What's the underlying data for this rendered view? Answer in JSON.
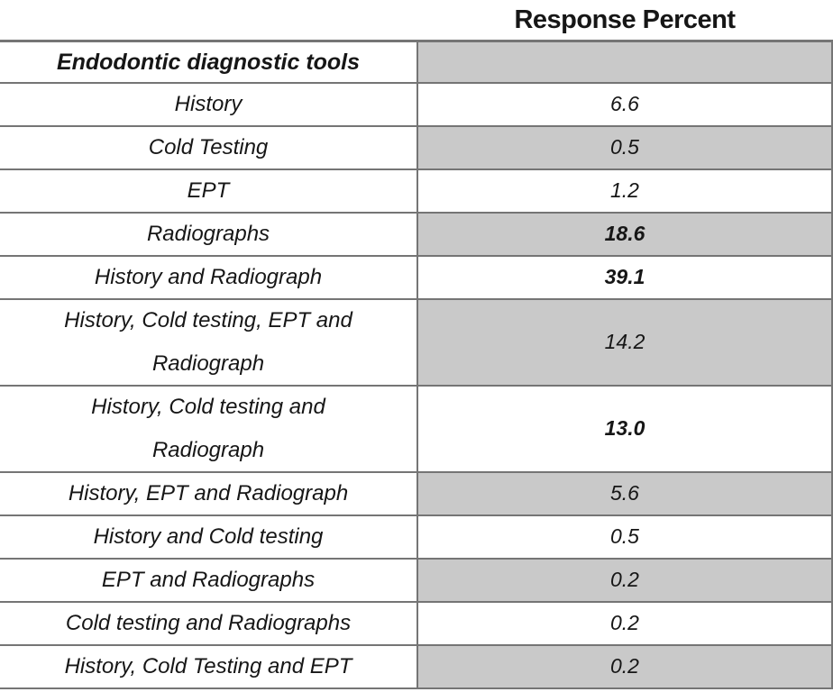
{
  "header": {
    "response_percent_label": "Response Percent",
    "tools_column_label": "Endodontic diagnostic tools"
  },
  "table": {
    "rows": [
      {
        "label": "History",
        "value": "6.6",
        "bold": false,
        "shaded": false,
        "two_line": false
      },
      {
        "label": "Cold Testing",
        "value": "0.5",
        "bold": false,
        "shaded": true,
        "two_line": false
      },
      {
        "label": "EPT",
        "value": "1.2",
        "bold": false,
        "shaded": false,
        "two_line": false
      },
      {
        "label": "Radiographs",
        "value": "18.6",
        "bold": true,
        "shaded": true,
        "two_line": false
      },
      {
        "label": "History and Radiograph",
        "value": "39.1",
        "bold": true,
        "shaded": false,
        "two_line": false
      },
      {
        "label": "History, Cold testing, EPT and Radiograph",
        "value": "14.2",
        "bold": false,
        "shaded": true,
        "two_line": true
      },
      {
        "label": "History, Cold testing and Radiograph",
        "value": "13.0",
        "bold": true,
        "shaded": false,
        "two_line": true
      },
      {
        "label": "History, EPT and Radiograph",
        "value": "5.6",
        "bold": false,
        "shaded": true,
        "two_line": false
      },
      {
        "label": "History and Cold testing",
        "value": "0.5",
        "bold": false,
        "shaded": false,
        "two_line": false
      },
      {
        "label": "EPT and Radiographs",
        "value": "0.2",
        "bold": false,
        "shaded": true,
        "two_line": false
      },
      {
        "label": "Cold testing and Radiographs",
        "value": "0.2",
        "bold": false,
        "shaded": false,
        "two_line": false
      },
      {
        "label": "History, Cold Testing and EPT",
        "value": "0.2",
        "bold": false,
        "shaded": true,
        "two_line": false
      }
    ]
  },
  "colors": {
    "shaded_cell": "#c9c9c9",
    "border": "#757575",
    "text": "#161616"
  },
  "chart_data": {
    "type": "table",
    "title": "Response Percent",
    "columns": [
      "Endodontic diagnostic tools",
      "Response Percent"
    ],
    "categories": [
      "History",
      "Cold Testing",
      "EPT",
      "Radiographs",
      "History and Radiograph",
      "History, Cold testing, EPT and Radiograph",
      "History, Cold testing and Radiograph",
      "History, EPT and Radiograph",
      "History and Cold testing",
      "EPT and Radiographs",
      "Cold testing and Radiographs",
      "History, Cold Testing and EPT"
    ],
    "values": [
      6.6,
      0.5,
      1.2,
      18.6,
      39.1,
      14.2,
      13.0,
      5.6,
      0.5,
      0.2,
      0.2,
      0.2
    ],
    "emphasized_values": [
      18.6,
      39.1,
      13.0
    ],
    "layout": "two-column table, value column shaded on alternate rows"
  }
}
